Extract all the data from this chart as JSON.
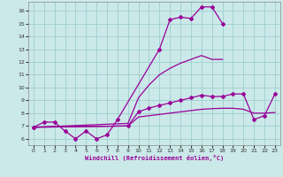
{
  "xlabel": "Windchill (Refroidissement éolien,°C)",
  "background_color": "#cbe9e9",
  "line_color": "#990099",
  "xlim": [
    -0.5,
    23.5
  ],
  "ylim": [
    5.5,
    16.7
  ],
  "x_ticks": [
    0,
    1,
    2,
    3,
    4,
    5,
    6,
    7,
    8,
    9,
    10,
    11,
    12,
    13,
    14,
    15,
    16,
    17,
    18,
    19,
    20,
    21,
    22,
    23
  ],
  "y_ticks": [
    6,
    7,
    8,
    9,
    10,
    11,
    12,
    13,
    14,
    15,
    16
  ],
  "grid_color": "#9ecece",
  "s1_x": [
    0,
    1,
    2,
    3,
    4,
    5,
    6,
    7,
    8,
    12,
    13,
    14,
    15,
    16,
    17,
    18
  ],
  "s1_y": [
    6.9,
    7.3,
    7.3,
    6.6,
    6.0,
    6.6,
    6.0,
    6.3,
    7.5,
    13.0,
    15.3,
    15.5,
    15.4,
    16.3,
    16.3,
    15.0
  ],
  "s2_x": [
    0,
    9,
    10,
    11,
    12,
    13,
    14,
    15,
    16,
    17,
    18
  ],
  "s2_y": [
    6.9,
    7.2,
    9.2,
    10.2,
    11.0,
    11.5,
    11.9,
    12.2,
    12.5,
    12.2,
    12.2
  ],
  "s3_x": [
    0,
    9,
    10,
    11,
    12,
    13,
    14,
    15,
    16,
    17,
    18,
    19,
    20,
    21,
    22,
    23
  ],
  "s3_y": [
    6.9,
    7.0,
    8.1,
    8.4,
    8.6,
    8.8,
    9.0,
    9.2,
    9.4,
    9.3,
    9.3,
    9.5,
    9.5,
    7.5,
    7.8,
    9.5
  ],
  "s4_x": [
    0,
    9,
    10,
    11,
    12,
    13,
    14,
    15,
    16,
    17,
    18,
    19,
    20,
    21,
    22,
    23
  ],
  "s4_y": [
    6.9,
    7.0,
    7.7,
    7.8,
    7.9,
    8.0,
    8.1,
    8.2,
    8.3,
    8.35,
    8.38,
    8.38,
    8.3,
    8.0,
    8.0,
    8.05
  ]
}
